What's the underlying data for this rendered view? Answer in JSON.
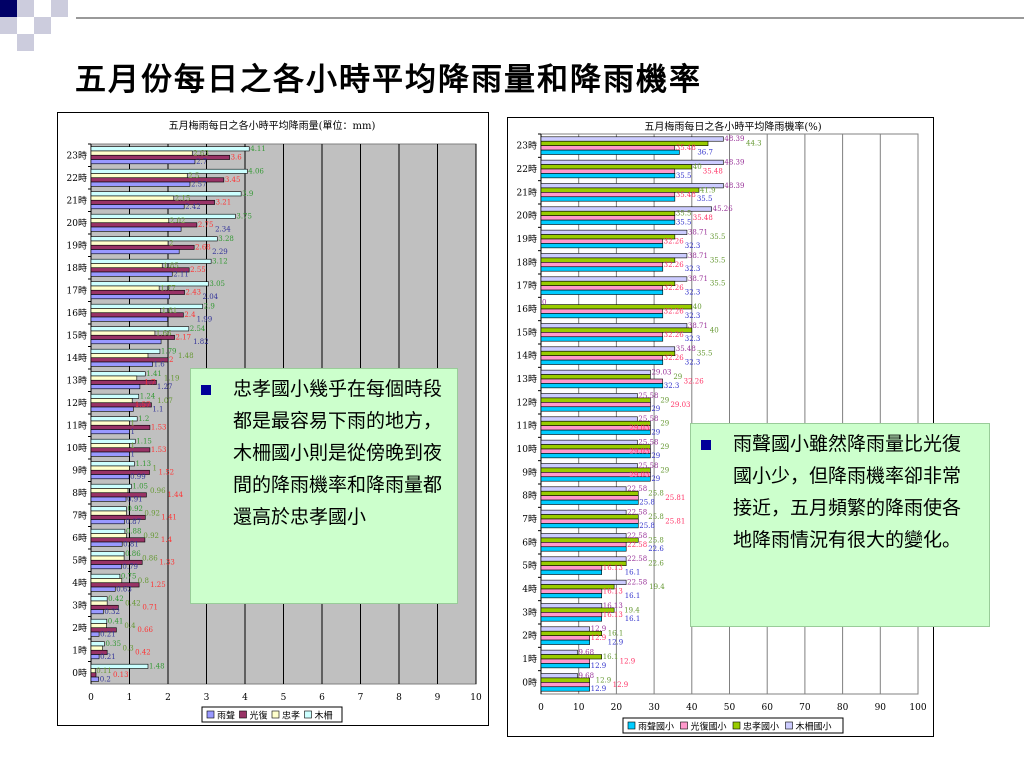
{
  "title": "五月份每日之各小時平均降雨量和降雨機率",
  "notes": [
    {
      "text": "忠孝國小幾乎在每個時段都是最容易下雨的地方，木柵國小則是從傍晚到夜間的降雨機率和降雨量都還高於忠孝國小"
    },
    {
      "text": "雨聲國小雖然降雨量比光復國小少，但降雨機率卻非常接近，五月頻繁的降雨使各地降雨情況有很大的變化。"
    }
  ],
  "chart_data": [
    {
      "type": "bar",
      "orientation": "horizontal",
      "title": "五月梅雨每日之各小時平均降雨量(單位：mm)",
      "categories": [
        "0時",
        "1時",
        "2時",
        "3時",
        "4時",
        "5時",
        "6時",
        "7時",
        "8時",
        "9時",
        "10時",
        "11時",
        "12時",
        "13時",
        "14時",
        "15時",
        "16時",
        "17時",
        "18時",
        "19時",
        "20時",
        "21時",
        "22時",
        "23時"
      ],
      "xlim": [
        0,
        10
      ],
      "xticks": [
        0,
        1,
        2,
        3,
        4,
        5,
        6,
        7,
        8,
        9,
        10
      ],
      "legend_position": "bottom",
      "grid": true,
      "plot_bg": "#c0c0c0",
      "series": [
        {
          "name": "雨聲",
          "color": "#9999ff",
          "label_color": "#333399",
          "values": [
            0.2,
            0.21,
            0.21,
            0.32,
            0.63,
            0.79,
            0.81,
            0.87,
            0.91,
            0.99,
            1,
            1,
            1.1,
            1.27,
            1.6,
            1.82,
            1.99,
            2.04,
            2.11,
            2.29,
            2.34,
            2.42,
            2.57,
            2.7
          ]
        },
        {
          "name": "光復",
          "color": "#993366",
          "label_color": "#ff3333",
          "values": [
            0.13,
            0.42,
            0.66,
            0.71,
            1.25,
            1.33,
            1.4,
            1.41,
            1.44,
            1.52,
            1.53,
            1.53,
            1.57,
            1.7,
            2,
            2.17,
            2.4,
            2.43,
            2.55,
            2.68,
            2.75,
            3.21,
            3.45,
            3.6
          ]
        },
        {
          "name": "忠孝",
          "color": "#ffffcc",
          "label_color": "#669933",
          "values": [
            0.11,
            0.3,
            0.4,
            0.42,
            0.8,
            0.86,
            0.92,
            0.92,
            0.96,
            1,
            1,
            1,
            1.07,
            1.19,
            1.48,
            1.66,
            1.81,
            1.77,
            1.85,
            2,
            2.02,
            2.15,
            2.5,
            2.63
          ]
        },
        {
          "name": "木柵",
          "color": "#ccffff",
          "label_color": "#339933",
          "values": [
            1.48,
            0.35,
            0.41,
            0.42,
            0.75,
            0.86,
            0.88,
            0.92,
            1.05,
            1.13,
            1.15,
            1.2,
            1.24,
            1.41,
            1.79,
            2.54,
            2.9,
            3.05,
            3.12,
            3.28,
            3.75,
            3.9,
            4.06,
            4.11
          ]
        }
      ]
    },
    {
      "type": "bar",
      "orientation": "horizontal",
      "title": "五月梅雨每日之各小時平均降雨機率(%)",
      "categories": [
        "0時",
        "1時",
        "2時",
        "3時",
        "4時",
        "5時",
        "6時",
        "7時",
        "8時",
        "9時",
        "10時",
        "11時",
        "12時",
        "13時",
        "14時",
        "15時",
        "16時",
        "17時",
        "18時",
        "19時",
        "20時",
        "21時",
        "22時",
        "23時"
      ],
      "xlim": [
        0,
        100
      ],
      "xticks": [
        0,
        10,
        20,
        30,
        40,
        50,
        60,
        70,
        80,
        90,
        100
      ],
      "legend_position": "bottom",
      "grid": true,
      "plot_bg": "#ffffff",
      "series": [
        {
          "name": "雨聲國小",
          "color": "#00ccff",
          "label_color": "#3333cc",
          "values": [
            12.9,
            12.9,
            12.9,
            16.1,
            16.1,
            16.1,
            22.6,
            25.8,
            25.8,
            29,
            29,
            29,
            29,
            32.3,
            32.3,
            32.3,
            32.3,
            32.3,
            32.3,
            32.3,
            35.5,
            35.5,
            35.5,
            36.7
          ]
        },
        {
          "name": "光復國小",
          "color": "#ff99cc",
          "label_color": "#ff3366",
          "values": [
            12.9,
            12.9,
            12.9,
            16.13,
            16.13,
            16.13,
            22.58,
            25.81,
            25.81,
            29.03,
            29.03,
            29.03,
            29.03,
            32.26,
            32.26,
            32.26,
            32.26,
            32.26,
            32.26,
            32.26,
            35.48,
            35.48,
            35.48,
            35.48
          ]
        },
        {
          "name": "忠孝國小",
          "color": "#99cc00",
          "label_color": "#669933",
          "values": [
            12.9,
            16.1,
            16.1,
            19.4,
            19.4,
            22.6,
            25.8,
            25.8,
            25.8,
            29,
            29,
            29,
            29,
            29,
            35.5,
            40,
            40,
            35.5,
            35.5,
            35.5,
            35.5,
            41.9,
            40,
            44.3
          ]
        },
        {
          "name": "木柵國小",
          "color": "#ccccff",
          "label_color": "#993399",
          "values": [
            9.68,
            9.68,
            12.9,
            16.13,
            22.58,
            22.58,
            22.58,
            22.58,
            22.58,
            25.58,
            25.58,
            25.58,
            25.58,
            29.03,
            35.48,
            38.71,
            0,
            38.71,
            38.71,
            38.71,
            45.26,
            48.39,
            48.39,
            48.39
          ]
        }
      ]
    }
  ]
}
